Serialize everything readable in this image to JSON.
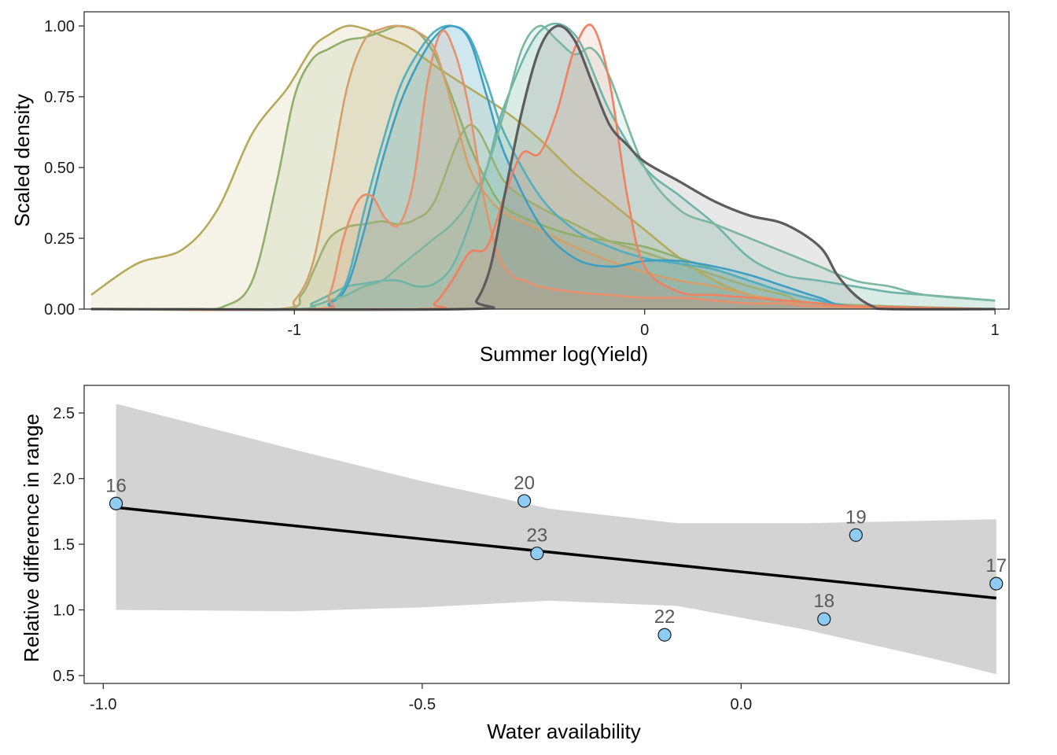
{
  "chart_data": [
    {
      "type": "area",
      "subtype": "density",
      "xlabel": "Summer log(Yield)",
      "ylabel": "Scaled density",
      "xlim": [
        -1.6,
        1.04
      ],
      "ylim": [
        0,
        1.05
      ],
      "x_ticks": [
        -1,
        0,
        1
      ],
      "x_tick_labels": [
        "-1",
        "0",
        "1"
      ],
      "y_ticks": [
        0,
        0.25,
        0.5,
        0.75,
        1
      ],
      "y_tick_labels": [
        "0.00",
        "0.25",
        "0.50",
        "0.75",
        "1.00"
      ],
      "grid": false,
      "legend": "none",
      "series": [
        {
          "color": "#B5AA5A",
          "x": [
            -1.58,
            -1.45,
            -1.32,
            -1.22,
            -1.12,
            -1.02,
            -0.95,
            -0.9,
            -0.85,
            -0.8,
            -0.74,
            -0.68,
            -0.6,
            -0.5,
            -0.4,
            -0.3,
            -0.2,
            -0.1,
            0.0,
            0.1,
            0.2,
            0.3,
            0.4,
            0.5,
            0.6,
            0.7,
            0.8,
            1.0
          ],
          "y": [
            0.05,
            0.16,
            0.21,
            0.35,
            0.62,
            0.78,
            0.92,
            0.97,
            1.0,
            0.99,
            0.96,
            0.93,
            0.86,
            0.78,
            0.7,
            0.6,
            0.48,
            0.38,
            0.28,
            0.18,
            0.1,
            0.05,
            0.03,
            0.02,
            0.01,
            0.0,
            0.0,
            0.0
          ]
        },
        {
          "color": "#8FAF6A",
          "x": [
            -1.58,
            -1.3,
            -1.2,
            -1.12,
            -1.05,
            -1.0,
            -0.95,
            -0.9,
            -0.85,
            -0.8,
            -0.75,
            -0.7,
            -0.65,
            -0.6,
            -0.55,
            -0.5,
            -0.45,
            -0.4,
            -0.3,
            -0.2,
            -0.1,
            0.0,
            0.1,
            0.2,
            0.3,
            0.4,
            0.5,
            0.6,
            1.0
          ],
          "y": [
            0.0,
            0.0,
            0.01,
            0.1,
            0.45,
            0.75,
            0.88,
            0.92,
            0.95,
            0.96,
            0.98,
            1.0,
            0.98,
            0.9,
            0.75,
            0.58,
            0.45,
            0.36,
            0.3,
            0.26,
            0.24,
            0.22,
            0.18,
            0.14,
            0.1,
            0.06,
            0.03,
            0.01,
            0.0
          ]
        },
        {
          "color": "#9EB070",
          "x": [
            -1.58,
            -1.05,
            -0.98,
            -0.94,
            -0.9,
            -0.85,
            -0.8,
            -0.75,
            -0.7,
            -0.65,
            -0.6,
            -0.5,
            -0.4,
            -0.3,
            -0.2,
            -0.1,
            0.0,
            0.1,
            0.2,
            0.3,
            0.4,
            0.5,
            1.0
          ],
          "y": [
            0.0,
            0.0,
            0.05,
            0.15,
            0.25,
            0.29,
            0.3,
            0.31,
            0.3,
            0.32,
            0.38,
            0.65,
            0.45,
            0.36,
            0.3,
            0.24,
            0.2,
            0.16,
            0.12,
            0.08,
            0.05,
            0.02,
            0.0
          ]
        },
        {
          "color": "#D4A06A",
          "x": [
            -1.58,
            -1.05,
            -1.0,
            -0.95,
            -0.9,
            -0.85,
            -0.8,
            -0.75,
            -0.7,
            -0.65,
            -0.6,
            -0.55,
            -0.5,
            -0.45,
            -0.4,
            -0.3,
            -0.2,
            -0.1,
            0.0,
            0.1,
            0.2,
            0.3,
            0.4,
            0.5,
            1.0
          ],
          "y": [
            0.0,
            0.0,
            0.03,
            0.15,
            0.45,
            0.78,
            0.95,
            0.99,
            1.0,
            0.98,
            0.92,
            0.72,
            0.5,
            0.4,
            0.34,
            0.28,
            0.22,
            0.17,
            0.13,
            0.1,
            0.08,
            0.05,
            0.03,
            0.01,
            0.0
          ]
        },
        {
          "color": "#6DB5A8",
          "x": [
            -1.58,
            -1.0,
            -0.95,
            -0.9,
            -0.85,
            -0.8,
            -0.75,
            -0.7,
            -0.65,
            -0.6,
            -0.55,
            -0.5,
            -0.45,
            -0.4,
            -0.3,
            -0.2,
            -0.1,
            0.0,
            0.1,
            0.2,
            0.3,
            0.4,
            0.5,
            0.6,
            0.7,
            0.8,
            1.0
          ],
          "y": [
            0.0,
            0.0,
            0.02,
            0.05,
            0.08,
            0.09,
            0.1,
            0.1,
            0.08,
            0.09,
            0.15,
            0.3,
            0.5,
            0.72,
            0.98,
            0.97,
            0.7,
            0.5,
            0.4,
            0.3,
            0.18,
            0.12,
            0.1,
            0.08,
            0.06,
            0.05,
            0.03
          ]
        },
        {
          "color": "#52AFC0",
          "x": [
            -1.58,
            -0.95,
            -0.9,
            -0.85,
            -0.8,
            -0.75,
            -0.7,
            -0.65,
            -0.6,
            -0.55,
            -0.5,
            -0.45,
            -0.4,
            -0.3,
            -0.2,
            -0.1,
            0.0,
            0.1,
            0.2,
            0.3,
            0.4,
            0.5,
            0.6,
            1.0
          ],
          "y": [
            0.0,
            0.0,
            0.02,
            0.1,
            0.35,
            0.58,
            0.78,
            0.9,
            0.98,
            1.0,
            0.96,
            0.8,
            0.62,
            0.4,
            0.28,
            0.22,
            0.18,
            0.16,
            0.14,
            0.1,
            0.06,
            0.03,
            0.01,
            0.0
          ]
        },
        {
          "color": "#3E9FC5",
          "x": [
            -1.58,
            -0.95,
            -0.9,
            -0.85,
            -0.8,
            -0.75,
            -0.7,
            -0.65,
            -0.6,
            -0.55,
            -0.5,
            -0.45,
            -0.4,
            -0.3,
            -0.2,
            -0.1,
            0.0,
            0.1,
            0.2,
            0.3,
            0.4,
            0.5,
            0.6,
            1.0
          ],
          "y": [
            0.0,
            0.0,
            0.02,
            0.08,
            0.28,
            0.52,
            0.72,
            0.86,
            0.96,
            1.0,
            0.95,
            0.75,
            0.55,
            0.3,
            0.18,
            0.15,
            0.17,
            0.17,
            0.15,
            0.12,
            0.08,
            0.04,
            0.01,
            0.0
          ]
        },
        {
          "color": "#7BB79E",
          "x": [
            -1.58,
            -1.0,
            -0.95,
            -0.9,
            -0.85,
            -0.8,
            -0.75,
            -0.7,
            -0.65,
            -0.6,
            -0.55,
            -0.5,
            -0.45,
            -0.4,
            -0.35,
            -0.3,
            -0.25,
            -0.2,
            -0.15,
            -0.1,
            0.0,
            0.1,
            0.2,
            0.3,
            0.4,
            0.5,
            0.6,
            0.7,
            0.8,
            1.0
          ],
          "y": [
            0.0,
            0.0,
            0.01,
            0.03,
            0.05,
            0.08,
            0.1,
            0.15,
            0.2,
            0.25,
            0.3,
            0.38,
            0.5,
            0.7,
            0.92,
            1.0,
            0.95,
            0.9,
            0.92,
            0.82,
            0.5,
            0.35,
            0.3,
            0.25,
            0.2,
            0.15,
            0.1,
            0.08,
            0.05,
            0.03
          ]
        },
        {
          "color": "#E8906A",
          "x": [
            -1.58,
            -0.95,
            -0.9,
            -0.86,
            -0.82,
            -0.78,
            -0.74,
            -0.7,
            -0.66,
            -0.62,
            -0.58,
            -0.54,
            -0.5,
            -0.46,
            -0.42,
            -0.38,
            -0.34,
            -0.3,
            -0.2,
            -0.1,
            0.0,
            0.1,
            0.2,
            0.3,
            0.4,
            0.5,
            1.0
          ],
          "y": [
            0.0,
            0.0,
            0.05,
            0.25,
            0.38,
            0.4,
            0.32,
            0.3,
            0.45,
            0.8,
            0.98,
            0.9,
            0.7,
            0.4,
            0.2,
            0.12,
            0.1,
            0.08,
            0.06,
            0.05,
            0.04,
            0.04,
            0.03,
            0.02,
            0.02,
            0.01,
            0.0
          ]
        },
        {
          "color": "#F08060",
          "x": [
            -1.58,
            -0.65,
            -0.6,
            -0.55,
            -0.5,
            -0.45,
            -0.4,
            -0.35,
            -0.3,
            -0.25,
            -0.2,
            -0.15,
            -0.1,
            -0.05,
            0.0,
            0.1,
            0.2,
            0.3,
            0.4,
            0.5,
            0.6,
            1.0
          ],
          "y": [
            0.0,
            0.0,
            0.02,
            0.1,
            0.2,
            0.22,
            0.4,
            0.55,
            0.55,
            0.7,
            0.92,
            1.0,
            0.8,
            0.4,
            0.15,
            0.06,
            0.05,
            0.04,
            0.03,
            0.02,
            0.01,
            0.0
          ]
        },
        {
          "color": "#5C5C5C",
          "x": [
            -1.58,
            -0.52,
            -0.48,
            -0.44,
            -0.4,
            -0.35,
            -0.3,
            -0.25,
            -0.2,
            -0.15,
            -0.1,
            -0.05,
            0.0,
            0.1,
            0.2,
            0.3,
            0.4,
            0.5,
            0.55,
            0.6,
            0.65,
            0.7,
            1.0
          ],
          "y": [
            0.0,
            0.0,
            0.03,
            0.15,
            0.4,
            0.7,
            0.92,
            1.0,
            0.95,
            0.8,
            0.65,
            0.58,
            0.52,
            0.45,
            0.38,
            0.33,
            0.3,
            0.22,
            0.12,
            0.05,
            0.01,
            0.0,
            0.0
          ]
        }
      ]
    },
    {
      "type": "scatter",
      "xlabel": "Water availability",
      "ylabel": "Relative difference in range",
      "xlim": [
        -1.03,
        0.42
      ],
      "ylim": [
        0.44,
        2.71
      ],
      "x_ticks": [
        -1.0,
        -0.5,
        0.0
      ],
      "x_tick_labels": [
        "-1.0",
        "-0.5",
        "0.0"
      ],
      "y_ticks": [
        0.5,
        1.0,
        1.5,
        2.0,
        2.5
      ],
      "y_tick_labels": [
        "0.5",
        "1.0",
        "1.5",
        "2.0",
        "2.5"
      ],
      "grid": false,
      "legend": "none",
      "point_color": "#8DCDF4",
      "points": [
        {
          "label": "16",
          "x": -0.98,
          "y": 1.81
        },
        {
          "label": "20",
          "x": -0.34,
          "y": 1.83
        },
        {
          "label": "23",
          "x": -0.32,
          "y": 1.43
        },
        {
          "label": "22",
          "x": -0.12,
          "y": 0.81
        },
        {
          "label": "19",
          "x": 0.18,
          "y": 1.57
        },
        {
          "label": "18",
          "x": 0.13,
          "y": 0.93
        },
        {
          "label": "17",
          "x": 0.4,
          "y": 1.2
        }
      ],
      "fit": {
        "x": [
          -0.98,
          0.4
        ],
        "y": [
          1.78,
          1.09
        ],
        "color": "#000000"
      },
      "ci_band": {
        "x": [
          -0.98,
          -0.7,
          -0.5,
          -0.3,
          -0.1,
          0.1,
          0.3,
          0.4
        ],
        "upper": [
          2.57,
          2.22,
          1.98,
          1.77,
          1.66,
          1.66,
          1.68,
          1.69
        ],
        "lower": [
          1.0,
          0.99,
          1.02,
          1.07,
          1.03,
          0.85,
          0.63,
          0.51
        ],
        "color": "#D3D3D3"
      }
    }
  ]
}
